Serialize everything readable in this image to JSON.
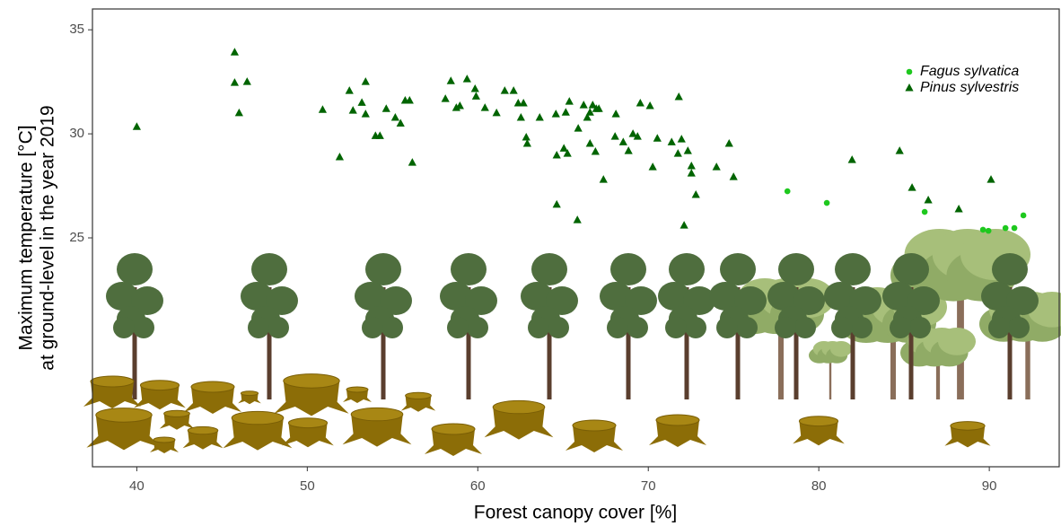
{
  "chart_data": {
    "type": "scatter",
    "y_label": [
      "Maximum temperature [°C]",
      "at ground-level in the year 2019"
    ],
    "x_label": "Forest canopy cover [%]",
    "xlim": [
      37.4,
      94.1
    ],
    "ylim": [
      14,
      36
    ],
    "xticks": [
      40,
      50,
      60,
      70,
      80,
      90
    ],
    "yticks": [
      25,
      30,
      35
    ],
    "grid": false,
    "legend": "top-right",
    "series": [
      {
        "name": "Fagus sylvatica",
        "color": "#1ec81e",
        "marker": "circle",
        "x": [
          78.16,
          80.47,
          86.21,
          89.63,
          89.95,
          90.95,
          91.47,
          92.0
        ],
        "values": [
          27.24,
          26.68,
          26.25,
          25.39,
          25.34,
          25.47,
          25.47,
          26.08
        ]
      },
      {
        "name": "Pinus sylvestris",
        "color": "#006400",
        "marker": "triangle",
        "x": [
          40.0,
          45.74,
          45.74,
          46.47,
          46.0,
          50.9,
          51.9,
          52.47,
          52.68,
          53.42,
          53.2,
          53.42,
          54.0,
          54.26,
          54.63,
          55.16,
          55.47,
          55.74,
          56.0,
          56.16,
          58.1,
          58.42,
          58.74,
          58.95,
          59.37,
          59.84,
          59.9,
          60.42,
          61.1,
          61.58,
          62.1,
          62.37,
          62.68,
          62.53,
          62.84,
          62.9,
          63.63,
          64.58,
          64.63,
          64.63,
          65.05,
          65.16,
          65.37,
          65.26,
          65.84,
          65.89,
          66.21,
          66.42,
          66.58,
          66.74,
          66.95,
          67.1,
          66.58,
          66.9,
          67.37,
          68.1,
          68.05,
          68.53,
          68.84,
          69.1,
          69.37,
          69.53,
          70.1,
          70.26,
          70.53,
          71.37,
          71.74,
          71.79,
          71.95,
          72.1,
          72.32,
          72.53,
          72.53,
          72.79,
          74.0,
          74.74,
          75.0,
          81.95,
          84.74,
          85.47,
          86.42,
          88.21,
          90.1
        ],
        "values": [
          30.34,
          33.92,
          32.46,
          32.5,
          31.0,
          31.16,
          28.88,
          32.07,
          31.12,
          32.5,
          31.5,
          30.95,
          29.9,
          29.9,
          31.2,
          30.78,
          30.5,
          31.6,
          31.6,
          28.62,
          31.68,
          32.54,
          31.25,
          31.34,
          32.63,
          32.16,
          31.8,
          31.25,
          31.0,
          32.07,
          32.07,
          31.47,
          31.47,
          30.78,
          29.83,
          29.53,
          30.78,
          30.95,
          26.6,
          28.97,
          29.3,
          31.03,
          31.55,
          29.05,
          25.86,
          30.26,
          31.38,
          30.78,
          31.03,
          31.38,
          31.2,
          31.2,
          29.53,
          29.14,
          27.8,
          30.95,
          29.87,
          29.6,
          29.18,
          30.0,
          29.87,
          31.47,
          31.34,
          28.4,
          29.78,
          29.6,
          29.05,
          31.77,
          29.74,
          25.6,
          29.18,
          28.45,
          28.1,
          27.07,
          28.4,
          29.53,
          27.93,
          28.75,
          29.18,
          27.41,
          26.81,
          26.38,
          27.8
        ]
      }
    ]
  }
}
